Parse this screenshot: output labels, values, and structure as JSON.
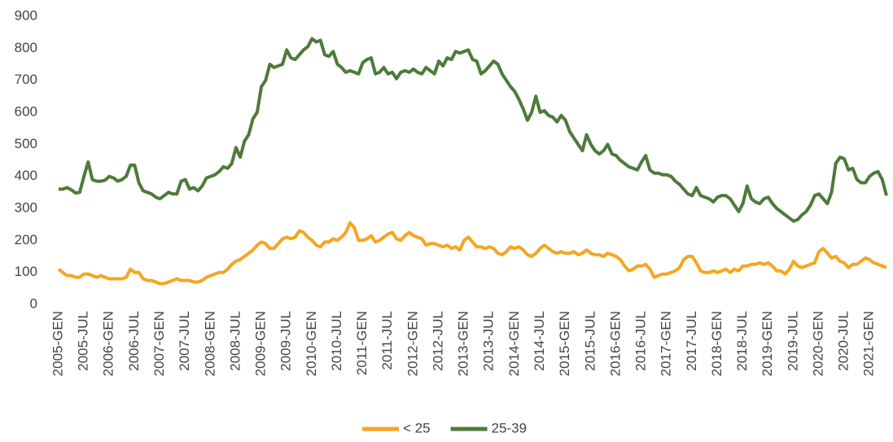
{
  "chart_data": {
    "type": "line",
    "categories": [
      "2005-GEN",
      null,
      null,
      null,
      null,
      null,
      "2005-JUL",
      null,
      null,
      null,
      null,
      null,
      "2006-GEN",
      null,
      null,
      null,
      null,
      null,
      "2006-JUL",
      null,
      null,
      null,
      null,
      null,
      "2007-GEN",
      null,
      null,
      null,
      null,
      null,
      "2007-JUL",
      null,
      null,
      null,
      null,
      null,
      "2008-GEN",
      null,
      null,
      null,
      null,
      null,
      "2008-JUL",
      null,
      null,
      null,
      null,
      null,
      "2009-GEN",
      null,
      null,
      null,
      null,
      null,
      "2009-JUL",
      null,
      null,
      null,
      null,
      null,
      "2010-GEN",
      null,
      null,
      null,
      null,
      null,
      "2010-JUL",
      null,
      null,
      null,
      null,
      null,
      "2011-GEN",
      null,
      null,
      null,
      null,
      null,
      "2011-JUL",
      null,
      null,
      null,
      null,
      null,
      "2012-GEN",
      null,
      null,
      null,
      null,
      null,
      "2012-JUL",
      null,
      null,
      null,
      null,
      null,
      "2013-GEN",
      null,
      null,
      null,
      null,
      null,
      "2013-JUL",
      null,
      null,
      null,
      null,
      null,
      "2014-GEN",
      null,
      null,
      null,
      null,
      null,
      "2014-JUL",
      null,
      null,
      null,
      null,
      null,
      "2015-GEN",
      null,
      null,
      null,
      null,
      null,
      "2015-JUL",
      null,
      null,
      null,
      null,
      null,
      "2016-GEN",
      null,
      null,
      null,
      null,
      null,
      "2016-JUL",
      null,
      null,
      null,
      null,
      null,
      "2017-GEN",
      null,
      null,
      null,
      null,
      null,
      "2017-JUL",
      null,
      null,
      null,
      null,
      null,
      "2018-GEN",
      null,
      null,
      null,
      null,
      null,
      "2018-JUL",
      null,
      null,
      null,
      null,
      null,
      "2019-GEN",
      null,
      null,
      null,
      null,
      null,
      "2019-JUL",
      null,
      null,
      null,
      null,
      null,
      "2020-GEN",
      null,
      null,
      null,
      null,
      null,
      "2020-JUL",
      null,
      null,
      null,
      null,
      null,
      "2021-GEN",
      null,
      null,
      null,
      null
    ],
    "series": [
      {
        "name": "< 25",
        "color": "#f4a622",
        "values": [
          110,
          100,
          90,
          90,
          85,
          85,
          95,
          95,
          90,
          85,
          90,
          85,
          80,
          80,
          80,
          80,
          85,
          110,
          100,
          100,
          80,
          75,
          75,
          70,
          65,
          65,
          70,
          75,
          80,
          75,
          75,
          75,
          70,
          70,
          75,
          85,
          90,
          95,
          100,
          100,
          110,
          125,
          135,
          140,
          150,
          160,
          170,
          185,
          195,
          190,
          175,
          175,
          190,
          205,
          210,
          205,
          210,
          230,
          225,
          210,
          200,
          185,
          180,
          195,
          195,
          205,
          200,
          210,
          225,
          255,
          240,
          200,
          200,
          205,
          215,
          195,
          200,
          210,
          220,
          225,
          205,
          200,
          215,
          225,
          215,
          210,
          205,
          185,
          190,
          190,
          185,
          180,
          185,
          175,
          180,
          170,
          200,
          210,
          195,
          180,
          180,
          175,
          180,
          175,
          160,
          155,
          165,
          180,
          175,
          180,
          170,
          155,
          150,
          160,
          175,
          185,
          175,
          165,
          160,
          165,
          160,
          160,
          165,
          155,
          160,
          170,
          160,
          155,
          155,
          150,
          160,
          155,
          150,
          140,
          120,
          105,
          110,
          120,
          120,
          125,
          110,
          85,
          90,
          95,
          95,
          100,
          105,
          115,
          140,
          150,
          150,
          130,
          105,
          100,
          100,
          105,
          100,
          105,
          110,
          100,
          110,
          105,
          120,
          120,
          125,
          125,
          130,
          125,
          130,
          120,
          105,
          105,
          95,
          110,
          135,
          120,
          115,
          120,
          125,
          130,
          165,
          175,
          160,
          145,
          150,
          135,
          130,
          115,
          125,
          125,
          135,
          145,
          140,
          130,
          125,
          120,
          115
        ]
      },
      {
        "name": "25-39",
        "color": "#4e7a3a",
        "values": [
          360,
          360,
          365,
          358,
          348,
          350,
          400,
          445,
          390,
          385,
          385,
          388,
          400,
          395,
          385,
          390,
          400,
          435,
          435,
          380,
          355,
          350,
          345,
          335,
          330,
          340,
          350,
          345,
          345,
          385,
          390,
          360,
          365,
          355,
          370,
          395,
          400,
          405,
          415,
          430,
          425,
          440,
          490,
          460,
          510,
          530,
          580,
          600,
          680,
          700,
          750,
          740,
          745,
          750,
          795,
          770,
          765,
          780,
          795,
          805,
          830,
          820,
          825,
          780,
          775,
          790,
          750,
          740,
          725,
          730,
          725,
          720,
          755,
          765,
          770,
          720,
          725,
          740,
          720,
          725,
          705,
          725,
          730,
          725,
          735,
          725,
          720,
          740,
          730,
          720,
          760,
          745,
          770,
          765,
          790,
          785,
          790,
          795,
          765,
          760,
          720,
          730,
          745,
          760,
          750,
          720,
          700,
          680,
          665,
          640,
          610,
          575,
          600,
          650,
          600,
          605,
          590,
          585,
          570,
          590,
          575,
          540,
          520,
          500,
          480,
          530,
          500,
          480,
          470,
          480,
          500,
          470,
          465,
          450,
          440,
          430,
          425,
          420,
          445,
          465,
          420,
          410,
          410,
          405,
          405,
          400,
          385,
          375,
          360,
          345,
          340,
          365,
          340,
          335,
          330,
          320,
          335,
          340,
          340,
          330,
          310,
          290,
          315,
          370,
          330,
          320,
          315,
          330,
          335,
          315,
          300,
          290,
          280,
          270,
          260,
          265,
          280,
          290,
          310,
          340,
          345,
          330,
          315,
          350,
          440,
          460,
          455,
          420,
          425,
          390,
          380,
          380,
          400,
          410,
          415,
          390,
          340
        ]
      }
    ],
    "ylim": [
      0,
      900
    ],
    "yticks": [
      0,
      100,
      200,
      300,
      400,
      500,
      600,
      700,
      800,
      900
    ],
    "grid": false,
    "legend": "bottom"
  }
}
